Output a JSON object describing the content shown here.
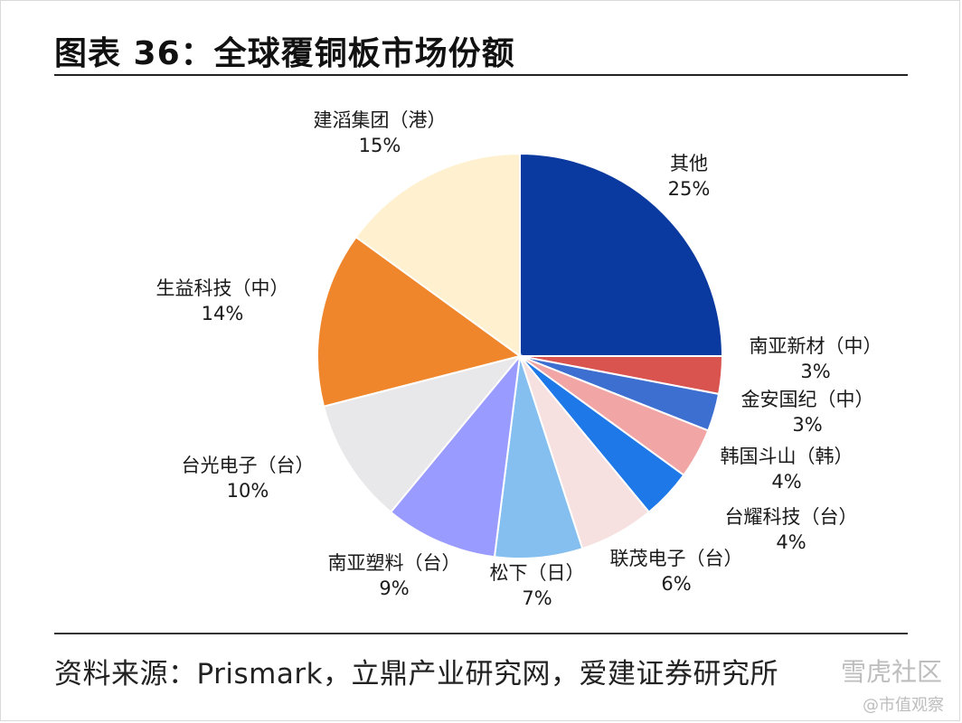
{
  "title": "图表 36：全球覆铜板市场份额",
  "source": "资料来源：Prismark，立鼎产业研究网，爱建证券研究所",
  "watermark": {
    "line1": "雪虎社区",
    "line2": "@市值观察"
  },
  "chart_data": {
    "type": "pie",
    "start_angle": "12 o'clock",
    "direction": "clockwise",
    "slices": [
      {
        "label": "其他",
        "value": 25,
        "value_label": "25%",
        "color": "#0a3aa0"
      },
      {
        "label": "南亚新材（中）",
        "value": 3,
        "value_label": "3%",
        "color": "#d9534f"
      },
      {
        "label": "金安国纪（中）",
        "value": 3,
        "value_label": "3%",
        "color": "#3d6fd0"
      },
      {
        "label": "韩国斗山（韩）",
        "value": 4,
        "value_label": "4%",
        "color": "#f2a5a5"
      },
      {
        "label": "台耀科技（台）",
        "value": 4,
        "value_label": "4%",
        "color": "#1e78e8"
      },
      {
        "label": "联茂电子（台）",
        "value": 6,
        "value_label": "6%",
        "color": "#f7e0e0"
      },
      {
        "label": "松下（日）",
        "value": 7,
        "value_label": "7%",
        "color": "#85bff0"
      },
      {
        "label": "南亚塑料（台）",
        "value": 9,
        "value_label": "9%",
        "color": "#9a9bff"
      },
      {
        "label": "台光电子（台）",
        "value": 10,
        "value_label": "10%",
        "color": "#e8e8ea"
      },
      {
        "label": "生益科技（中）",
        "value": 14,
        "value_label": "14%",
        "color": "#ef862b"
      },
      {
        "label": "建滔集团（港）",
        "value": 15,
        "value_label": "15%",
        "color": "#fff1cf"
      }
    ]
  }
}
